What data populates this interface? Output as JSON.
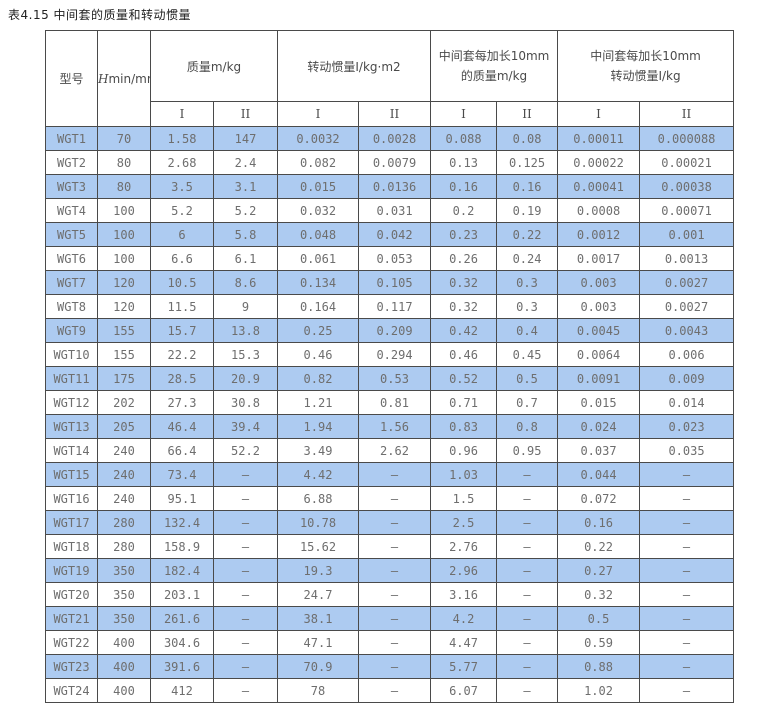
{
  "page": {
    "title": "表4.15 中间套的质量和转动惯量"
  },
  "colors": {
    "row_highlight": "#adcbf1",
    "border": "#4a4a4a",
    "data_text": "#6e6e6e"
  },
  "table": {
    "columns": {
      "model": "型号",
      "hmin_var": "H",
      "hmin_rest": "min/mm",
      "group_mass": "质量m/kg",
      "group_inertia": "转动惯量I/kg·m2",
      "group_ext_mass_line1": "中间套每加长10mm",
      "group_ext_mass_line2": "的质量m/kg",
      "group_ext_inertia_line1": "中间套每加长10mm",
      "group_ext_inertia_line2": "转动惯量I/kg",
      "sub_headers": [
        "I",
        "II",
        "I",
        "II",
        "I",
        "II",
        "I",
        "II"
      ]
    },
    "rows": [
      {
        "model": "WGT1",
        "values": [
          "70",
          "1.58",
          "147",
          "0.0032",
          "0.0028",
          "0.088",
          "0.08",
          "0.00011",
          "0.000088"
        ]
      },
      {
        "model": "WGT2",
        "values": [
          "80",
          "2.68",
          "2.4",
          "0.082",
          "0.0079",
          "0.13",
          "0.125",
          "0.00022",
          "0.00021"
        ]
      },
      {
        "model": "WGT3",
        "values": [
          "80",
          "3.5",
          "3.1",
          "0.015",
          "0.0136",
          "0.16",
          "0.16",
          "0.00041",
          "0.00038"
        ]
      },
      {
        "model": "WGT4",
        "values": [
          "100",
          "5.2",
          "5.2",
          "0.032",
          "0.031",
          "0.2",
          "0.19",
          "0.0008",
          "0.00071"
        ]
      },
      {
        "model": "WGT5",
        "values": [
          "100",
          "6",
          "5.8",
          "0.048",
          "0.042",
          "0.23",
          "0.22",
          "0.0012",
          "0.001"
        ]
      },
      {
        "model": "WGT6",
        "values": [
          "100",
          "6.6",
          "6.1",
          "0.061",
          "0.053",
          "0.26",
          "0.24",
          "0.0017",
          "0.0013"
        ]
      },
      {
        "model": "WGT7",
        "values": [
          "120",
          "10.5",
          "8.6",
          "0.134",
          "0.105",
          "0.32",
          "0.3",
          "0.003",
          "0.0027"
        ]
      },
      {
        "model": "WGT8",
        "values": [
          "120",
          "11.5",
          "9",
          "0.164",
          "0.117",
          "0.32",
          "0.3",
          "0.003",
          "0.0027"
        ]
      },
      {
        "model": "WGT9",
        "values": [
          "155",
          "15.7",
          "13.8",
          "0.25",
          "0.209",
          "0.42",
          "0.4",
          "0.0045",
          "0.0043"
        ]
      },
      {
        "model": "WGT10",
        "values": [
          "155",
          "22.2",
          "15.3",
          "0.46",
          "0.294",
          "0.46",
          "0.45",
          "0.0064",
          "0.006"
        ]
      },
      {
        "model": "WGT11",
        "values": [
          "175",
          "28.5",
          "20.9",
          "0.82",
          "0.53",
          "0.52",
          "0.5",
          "0.0091",
          "0.009"
        ]
      },
      {
        "model": "WGT12",
        "values": [
          "202",
          "27.3",
          "30.8",
          "1.21",
          "0.81",
          "0.71",
          "0.7",
          "0.015",
          "0.014"
        ]
      },
      {
        "model": "WGT13",
        "values": [
          "205",
          "46.4",
          "39.4",
          "1.94",
          "1.56",
          "0.83",
          "0.8",
          "0.024",
          "0.023"
        ]
      },
      {
        "model": "WGT14",
        "values": [
          "240",
          "66.4",
          "52.2",
          "3.49",
          "2.62",
          "0.96",
          "0.95",
          "0.037",
          "0.035"
        ]
      },
      {
        "model": "WGT15",
        "values": [
          "240",
          "73.4",
          "–",
          "4.42",
          "–",
          "1.03",
          "–",
          "0.044",
          "–"
        ]
      },
      {
        "model": "WGT16",
        "values": [
          "240",
          "95.1",
          "–",
          "6.88",
          "–",
          "1.5",
          "–",
          "0.072",
          "–"
        ]
      },
      {
        "model": "WGT17",
        "values": [
          "280",
          "132.4",
          "–",
          "10.78",
          "–",
          "2.5",
          "–",
          "0.16",
          "–"
        ]
      },
      {
        "model": "WGT18",
        "values": [
          "280",
          "158.9",
          "–",
          "15.62",
          "–",
          "2.76",
          "–",
          "0.22",
          "–"
        ]
      },
      {
        "model": "WGT19",
        "values": [
          "350",
          "182.4",
          "–",
          "19.3",
          "–",
          "2.96",
          "–",
          "0.27",
          "–"
        ]
      },
      {
        "model": "WGT20",
        "values": [
          "350",
          "203.1",
          "–",
          "24.7",
          "–",
          "3.16",
          "–",
          "0.32",
          "–"
        ]
      },
      {
        "model": "WGT21",
        "values": [
          "350",
          "261.6",
          "–",
          "38.1",
          "–",
          "4.2",
          "–",
          "0.5",
          "–"
        ]
      },
      {
        "model": "WGT22",
        "values": [
          "400",
          "304.6",
          "–",
          "47.1",
          "–",
          "4.47",
          "–",
          "0.59",
          "–"
        ]
      },
      {
        "model": "WGT23",
        "values": [
          "400",
          "391.6",
          "–",
          "70.9",
          "–",
          "5.77",
          "–",
          "0.88",
          "–"
        ]
      },
      {
        "model": "WGT24",
        "values": [
          "400",
          "412",
          "–",
          "78",
          "–",
          "6.07",
          "–",
          "1.02",
          "–"
        ]
      }
    ]
  }
}
